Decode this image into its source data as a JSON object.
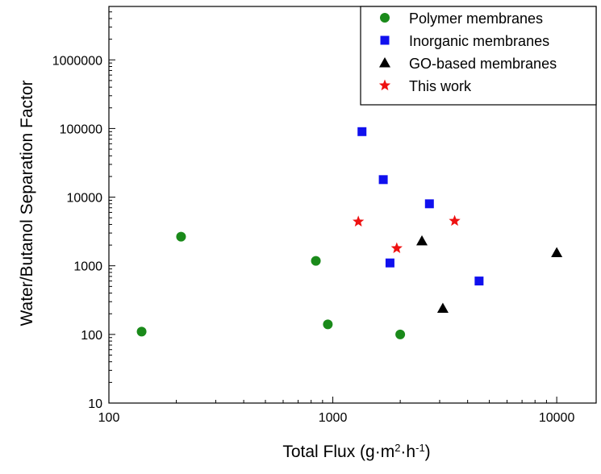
{
  "chart_data": {
    "type": "scatter",
    "title": "",
    "xlabel": {
      "prefix": "Total Flux (g·m",
      "sup1": "2",
      "mid": "·h",
      "sup2": "-1",
      "suffix": ")"
    },
    "ylabel": "Water/Butanol Separation Factor",
    "x_scale": "log",
    "y_scale": "log",
    "xlim": [
      100,
      15000
    ],
    "ylim": [
      10,
      6000000
    ],
    "x_ticks": [
      100,
      1000,
      10000
    ],
    "x_tick_labels": [
      "100",
      "1000",
      "10000"
    ],
    "y_ticks": [
      10,
      100,
      1000,
      10000,
      100000,
      1000000
    ],
    "y_tick_labels": [
      "10",
      "100",
      "1000",
      "10000",
      "100000",
      "1000000"
    ],
    "grid": false,
    "legend_position": "top-right",
    "series": [
      {
        "name": "Polymer membranes",
        "marker": "circle",
        "color": "#1a8a1a",
        "points": [
          {
            "x": 140,
            "y": 110
          },
          {
            "x": 210,
            "y": 2650
          },
          {
            "x": 840,
            "y": 1180
          },
          {
            "x": 950,
            "y": 140
          },
          {
            "x": 2000,
            "y": 100
          }
        ]
      },
      {
        "name": "Inorganic membranes",
        "marker": "square",
        "color": "#1010ee",
        "points": [
          {
            "x": 1350,
            "y": 90000
          },
          {
            "x": 1680,
            "y": 18000
          },
          {
            "x": 1800,
            "y": 1100
          },
          {
            "x": 2700,
            "y": 8000
          },
          {
            "x": 4500,
            "y": 600
          }
        ]
      },
      {
        "name": "GO-based membranes",
        "marker": "triangle",
        "color": "#000000",
        "points": [
          {
            "x": 2500,
            "y": 2300
          },
          {
            "x": 3100,
            "y": 240
          },
          {
            "x": 10000,
            "y": 1550
          }
        ]
      },
      {
        "name": "This work",
        "marker": "star",
        "color": "#ee1111",
        "points": [
          {
            "x": 1300,
            "y": 4400
          },
          {
            "x": 1930,
            "y": 1800
          },
          {
            "x": 3500,
            "y": 4500
          }
        ]
      }
    ]
  }
}
